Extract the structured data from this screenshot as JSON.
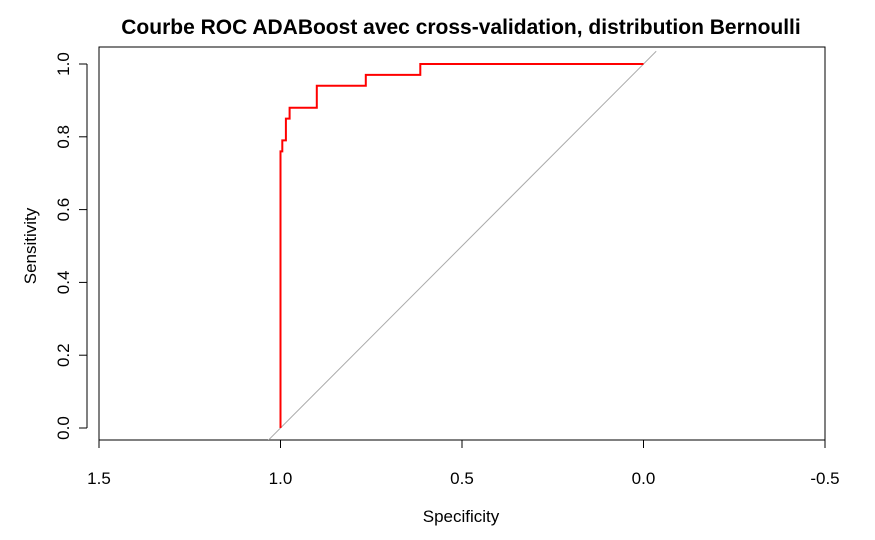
{
  "chart_data": {
    "type": "line",
    "title": "Courbe ROC ADABoost avec cross-validation, distribution Bernoulli",
    "xlabel": "Specificity",
    "ylabel": "Sensitivity",
    "xlim": [
      1.5,
      -0.5
    ],
    "ylim": [
      0.0,
      1.0
    ],
    "x_reversed": true,
    "x_ticks": [
      1.5,
      1.0,
      0.5,
      0.0,
      -0.5
    ],
    "x_tick_labels": [
      "1.5",
      "1.0",
      "0.5",
      "0.0",
      "-0.5"
    ],
    "y_ticks": [
      0.0,
      0.2,
      0.4,
      0.6,
      0.8,
      1.0
    ],
    "y_tick_labels": [
      "0.0",
      "0.2",
      "0.4",
      "0.6",
      "0.8",
      "1.0"
    ],
    "grid": false,
    "legend": "none",
    "series": [
      {
        "color": "#ff0000",
        "specificity": [
          1.0,
          1.0,
          0.995,
          0.995,
          0.985,
          0.985,
          0.975,
          0.975,
          0.9,
          0.9,
          0.765,
          0.765,
          0.615,
          0.615,
          0.0
        ],
        "sensitivity": [
          0.0,
          0.76,
          0.76,
          0.79,
          0.79,
          0.85,
          0.85,
          0.88,
          0.88,
          0.94,
          0.94,
          0.97,
          0.97,
          1.0,
          1.0
        ]
      }
    ],
    "reference_line": {
      "color": "#aaaaaa",
      "specificity": [
        1.035,
        -0.035
      ],
      "sensitivity": [
        -0.035,
        1.035
      ]
    }
  }
}
